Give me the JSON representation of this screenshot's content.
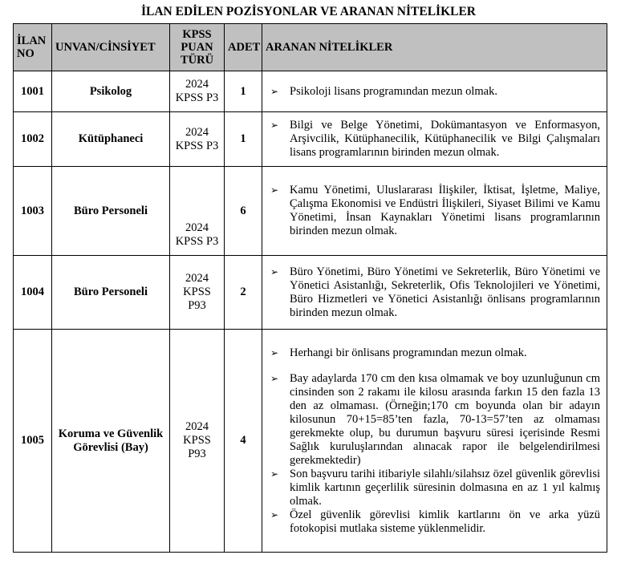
{
  "title": "İLAN EDİLEN POZİSYONLAR VE ARANAN NİTELİKLER",
  "headers": {
    "no": "İLAN NO",
    "unvan": "UNVAN/CİNSİYET",
    "kpss": "KPSS PUAN TÜRÜ",
    "adet": "ADET",
    "nitelikler": "ARANAN NİTELİKLER"
  },
  "bullet_icon": "arrowhead-bullet",
  "rows": [
    {
      "no": "1001",
      "unvan": "Psikolog",
      "kpss": "2024 KPSS P3",
      "adet": "1",
      "items": [
        "Psikoloji lisans programından mezun olmak."
      ]
    },
    {
      "no": "1002",
      "unvan": "Kütüphaneci",
      "kpss": "2024 KPSS P3",
      "adet": "1",
      "items": [
        "Bilgi ve Belge Yönetimi, Dokümantasyon ve Enformasyon, Arşivcilik, Kütüphanecilik, Kütüphanecilik ve Bilgi Çalışmaları lisans programlarının birinden mezun olmak."
      ]
    },
    {
      "no": "1003",
      "unvan": "Büro Personeli",
      "kpss": "2024 KPSS P3",
      "adet": "6",
      "items": [
        "Kamu Yönetimi, Uluslararası İlişkiler, İktisat, İşletme, Maliye, Çalışma Ekonomisi ve Endüstri İlişkileri, Siyaset Bilimi ve Kamu Yönetimi, İnsan Kaynakları Yönetimi lisans programlarının birinden mezun olmak."
      ]
    },
    {
      "no": "1004",
      "unvan": "Büro Personeli",
      "kpss": "2024 KPSS P93",
      "adet": "2",
      "items": [
        "Büro Yönetimi, Büro Yönetimi ve Sekreterlik, Büro Yönetimi ve Yönetici Asistanlığı, Sekreterlik, Ofis Teknolojileri ve Yönetimi, Büro Hizmetleri ve Yönetici Asistanlığı önlisans programlarının birinden mezun olmak."
      ]
    },
    {
      "no": "1005",
      "unvan": "Koruma ve Güvenlik Görevlisi (Bay)",
      "kpss": "2024 KPSS P93",
      "adet": "4",
      "items": [
        "Herhangi bir önlisans programından mezun olmak.",
        "Bay adaylarda 170 cm den kısa olmamak ve boy uzunluğunun cm cinsinden son 2 rakamı ile kilosu arasında farkın 15 den fazla 13 den az olmaması. (Örneğin;170 cm boyunda olan bir adayın kilosunun 70+15=85’ten fazla, 70-13=57’ten az olmaması gerekmekte olup, bu durumun başvuru süresi içerisinde Resmi Sağlık kuruluşlarından alınacak rapor ile belgelendirilmesi gerekmektedir)",
        "Son başvuru tarihi itibariyle silahlı/silahsız özel güvenlik görevlisi kimlik kartının geçerlilik süresinin dolmasına en az 1 yıl kalmış olmak.",
        "Özel güvenlik görevlisi kimlik kartlarını ön ve arka yüzü fotokopisi mutlaka sisteme yüklenmelidir."
      ]
    }
  ]
}
